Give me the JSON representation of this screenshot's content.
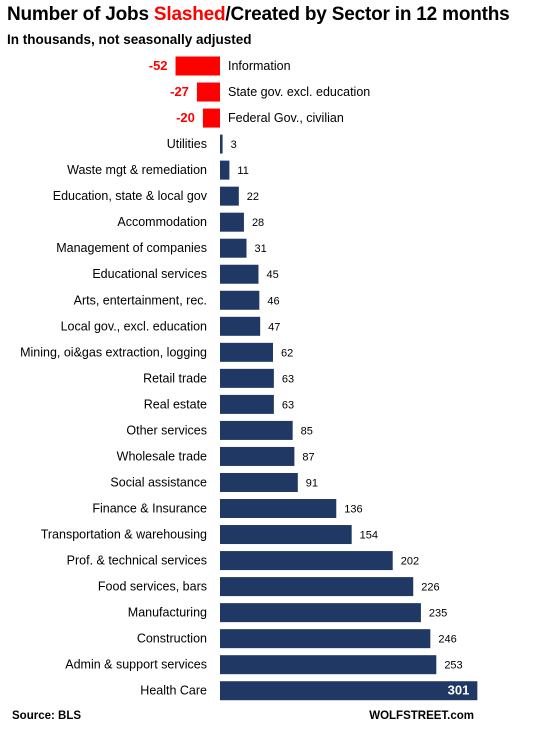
{
  "chart_data": {
    "type": "bar",
    "orientation": "horizontal",
    "title_parts": [
      "Number of Jobs ",
      "Slashed",
      "/Created by Sector in 12 months"
    ],
    "subtitle": "In thousands, not seasonally adjusted",
    "categories": [
      "Information",
      "State gov. excl. education",
      "Federal Gov., civilian",
      "Utilities",
      "Waste mgt & remediation",
      "Education, state & local gov",
      "Accommodation",
      "Management of companies",
      "Educational services",
      "Arts, entertainment, rec.",
      "Local gov., excl. education",
      "Mining, oi&gas extraction, logging",
      "Retail trade",
      "Real estate",
      "Other services",
      "Wholesale trade",
      "Social assistance",
      "Finance & Insurance",
      "Transportation & warehousing",
      "Prof. & technical services",
      "Food services, bars",
      "Manufacturing",
      "Construction",
      "Admin & support services",
      "Health Care"
    ],
    "values": [
      -52,
      -27,
      -20,
      3,
      11,
      22,
      28,
      31,
      45,
      46,
      47,
      62,
      63,
      63,
      85,
      87,
      91,
      136,
      154,
      202,
      226,
      235,
      246,
      253,
      301
    ],
    "colors": {
      "positive": "#1f3864",
      "negative": "#ff0000"
    },
    "grid": false,
    "legend": "none"
  },
  "source": "Source: BLS",
  "brand": "WOLFSTREET.com"
}
